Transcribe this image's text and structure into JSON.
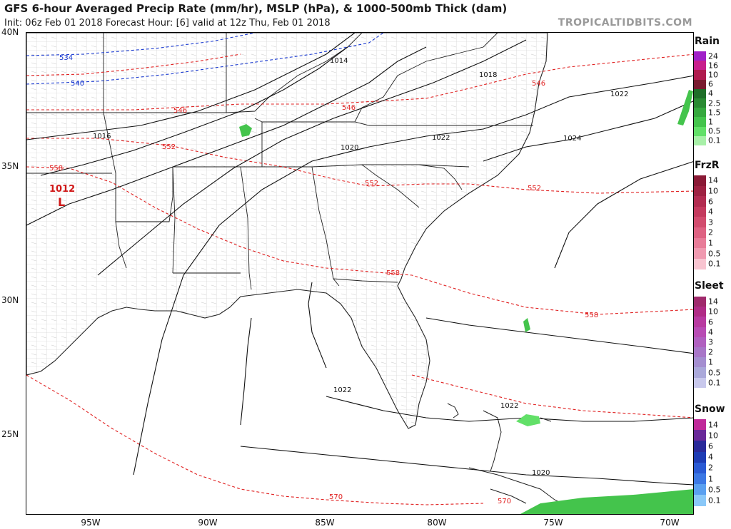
{
  "header": {
    "title": "GFS 6-hour Averaged Precip Rate (mm/hr), MSLP (hPa), & 1000-500mb Thick (dam)",
    "subtitle": "Init: 06z Feb 01 2018   Forecast Hour: [6]   valid at 12z Thu, Feb 01 2018",
    "brand": "TROPICALTIDBITS.COM"
  },
  "axes": {
    "lat_labels": [
      "40N",
      "35N",
      "30N",
      "25N"
    ],
    "lon_labels": [
      "95W",
      "90W",
      "85W",
      "80W",
      "75W",
      "70W"
    ]
  },
  "map": {
    "low_center": {
      "label": "L",
      "value": "1012"
    },
    "isobar_labels": [
      "1014",
      "1016",
      "1018",
      "1020",
      "1022",
      "1022",
      "1022",
      "1024",
      "1022",
      "1020"
    ],
    "thickness_labels": [
      "534",
      "540",
      "546",
      "546",
      "546",
      "552",
      "552",
      "552",
      "558",
      "558",
      "558",
      "570",
      "570"
    ]
  },
  "legends": [
    {
      "title": "Rain",
      "levels": [
        "24",
        "16",
        "10",
        "6",
        "4",
        "2.5",
        "1.5",
        "1",
        "0.5",
        "0.1"
      ],
      "colors": [
        "#a020c8",
        "#c81e8c",
        "#b01c4e",
        "#7a1c30",
        "#1e6e28",
        "#2a8a32",
        "#36a83e",
        "#44c44c",
        "#62e068",
        "#a8f0a8"
      ]
    },
    {
      "title": "FrzR",
      "levels": [
        "14",
        "10",
        "6",
        "4",
        "3",
        "2",
        "1",
        "0.5",
        "0.1"
      ],
      "colors": [
        "#8a1a36",
        "#9e2242",
        "#b22c50",
        "#c43a5e",
        "#d24c6e",
        "#de6282",
        "#e87c98",
        "#f09ab0",
        "#f8c4d0"
      ]
    },
    {
      "title": "Sleet",
      "levels": [
        "14",
        "10",
        "6",
        "4",
        "3",
        "2",
        "1",
        "0.5",
        "0.1"
      ],
      "colors": [
        "#a02a6c",
        "#b02c86",
        "#b83aa0",
        "#b84cb4",
        "#b060c0",
        "#a876c8",
        "#a48ed0",
        "#aaa8da",
        "#c8c8ec"
      ]
    },
    {
      "title": "Snow",
      "levels": [
        "14",
        "10",
        "6",
        "4",
        "2",
        "1",
        "0.5",
        "0.1"
      ],
      "colors": [
        "#c02a9a",
        "#6a2a9a",
        "#2a2a9a",
        "#1e3cb4",
        "#2a5ad4",
        "#3c78e4",
        "#5aa0f0",
        "#8ac8f8"
      ]
    }
  ]
}
